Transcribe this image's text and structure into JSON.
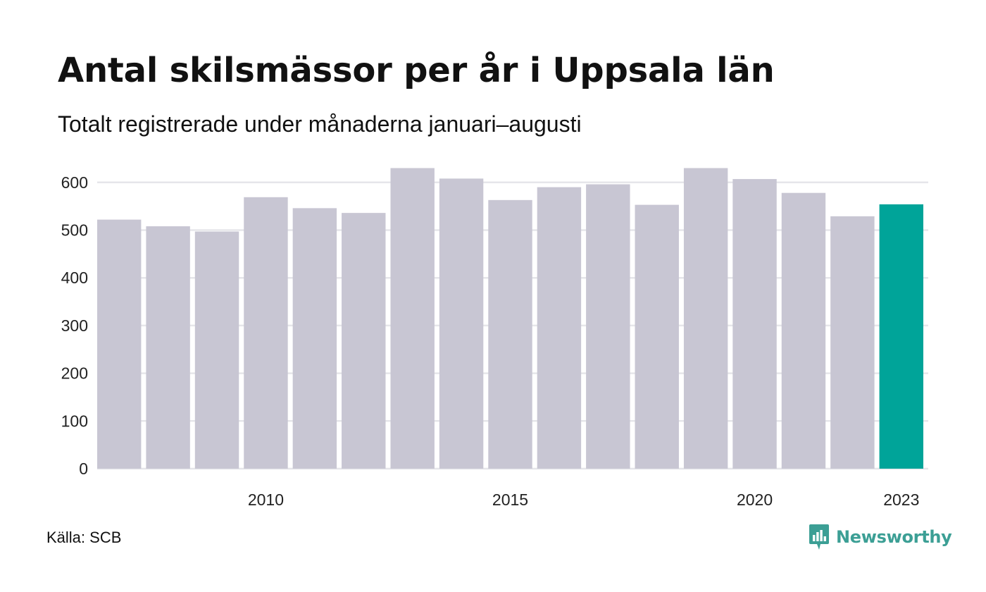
{
  "title": "Antal skilsmässor per år i Uppsala län",
  "subtitle": "Totalt registrerade under månaderna januari–augusti",
  "source": "Källa: SCB",
  "brand": {
    "name": "Newsworthy",
    "icon": "newsworthy-logo-icon"
  },
  "colors": {
    "bar": "#c8c6d3",
    "highlight": "#00a499",
    "grid": "#e6e6ea",
    "brand": "#3c9f95"
  },
  "chart_data": {
    "type": "bar",
    "title": "Antal skilsmässor per år i Uppsala län",
    "subtitle": "Totalt registrerade under månaderna januari–augusti",
    "xlabel": "",
    "ylabel": "",
    "categories": [
      2007,
      2008,
      2009,
      2010,
      2011,
      2012,
      2013,
      2014,
      2015,
      2016,
      2017,
      2018,
      2019,
      2020,
      2021,
      2022,
      2023
    ],
    "values": [
      522,
      508,
      497,
      569,
      546,
      536,
      630,
      608,
      563,
      590,
      596,
      553,
      630,
      607,
      578,
      529,
      554
    ],
    "highlight_category": 2023,
    "x_tick_labels": [
      "2010",
      "2015",
      "2020",
      "2023"
    ],
    "y_ticks": [
      0,
      100,
      200,
      300,
      400,
      500,
      600
    ],
    "ylim": [
      0,
      630
    ],
    "grid": "horizontal",
    "legend": "none"
  }
}
